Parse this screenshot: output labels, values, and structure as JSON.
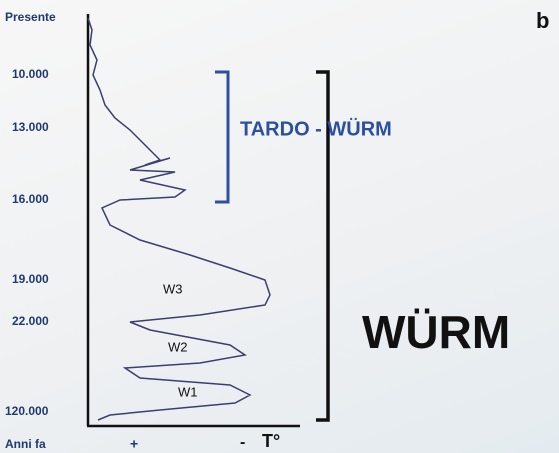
{
  "panel_letter": "b",
  "axis": {
    "time_labels": [
      "Presente",
      "10.000",
      "13.000",
      "16.000",
      "19.000",
      "22.000",
      "120.000"
    ],
    "time_title": "Anni fa",
    "temp_plus": "+",
    "temp_minus": "-",
    "temp_title": "T°"
  },
  "annotations": {
    "late_glacial": "TARDO - WÜRM",
    "glacial": "WÜRM",
    "stadials": [
      "W3",
      "W2",
      "W1"
    ]
  }
}
